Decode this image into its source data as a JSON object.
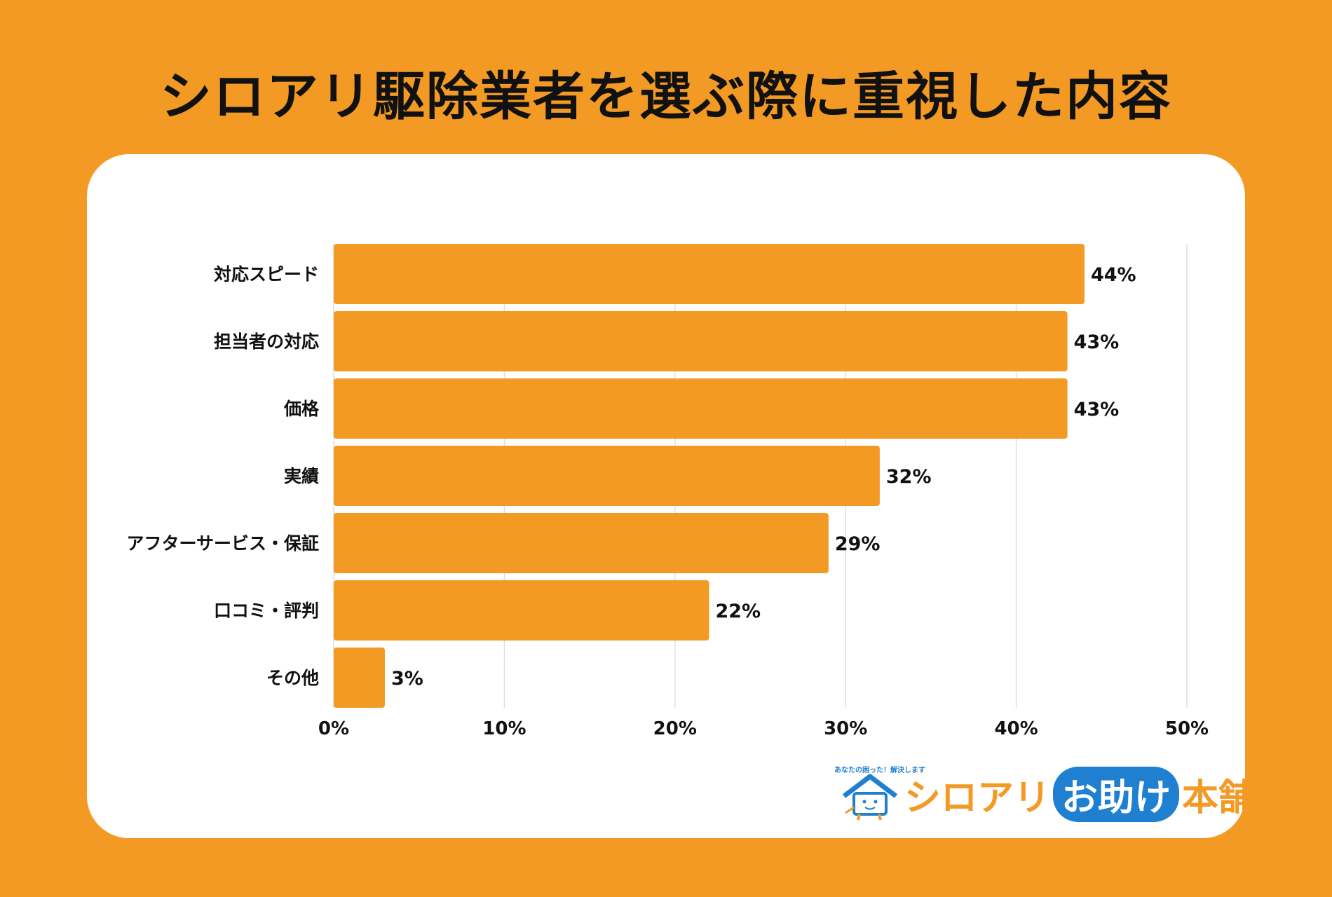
{
  "title": "シロアリ駆除業者を選ぶ際に重視した内容",
  "colors": {
    "background": "#F39A25",
    "bar": "#F39A25",
    "card": "#FFFFFF",
    "logo_blue": "#1F7FD0"
  },
  "chart_data": {
    "type": "bar",
    "orientation": "horizontal",
    "title": "シロアリ駆除業者を選ぶ際に重視した内容",
    "categories": [
      "対応スピード",
      "担当者の対応",
      "価格",
      "実績",
      "アフターサービス・保証",
      "口コミ・評判",
      "その他"
    ],
    "values": [
      44,
      43,
      43,
      32,
      29,
      22,
      3
    ],
    "value_labels": [
      "44%",
      "43%",
      "43%",
      "32%",
      "29%",
      "22%",
      "3%"
    ],
    "xlim": [
      0,
      50
    ],
    "xticks": [
      0,
      10,
      20,
      30,
      40,
      50
    ],
    "xtick_labels": [
      "0%",
      "10%",
      "20%",
      "30%",
      "40%",
      "50%"
    ],
    "xlabel": "",
    "ylabel": "",
    "grid": true
  },
  "logo": {
    "tagline": "あなたの困った！解決します",
    "name_part1": "シロアリ",
    "name_part2": "お助け",
    "name_part3": "本舗",
    "icon": "house-mascot-icon"
  }
}
